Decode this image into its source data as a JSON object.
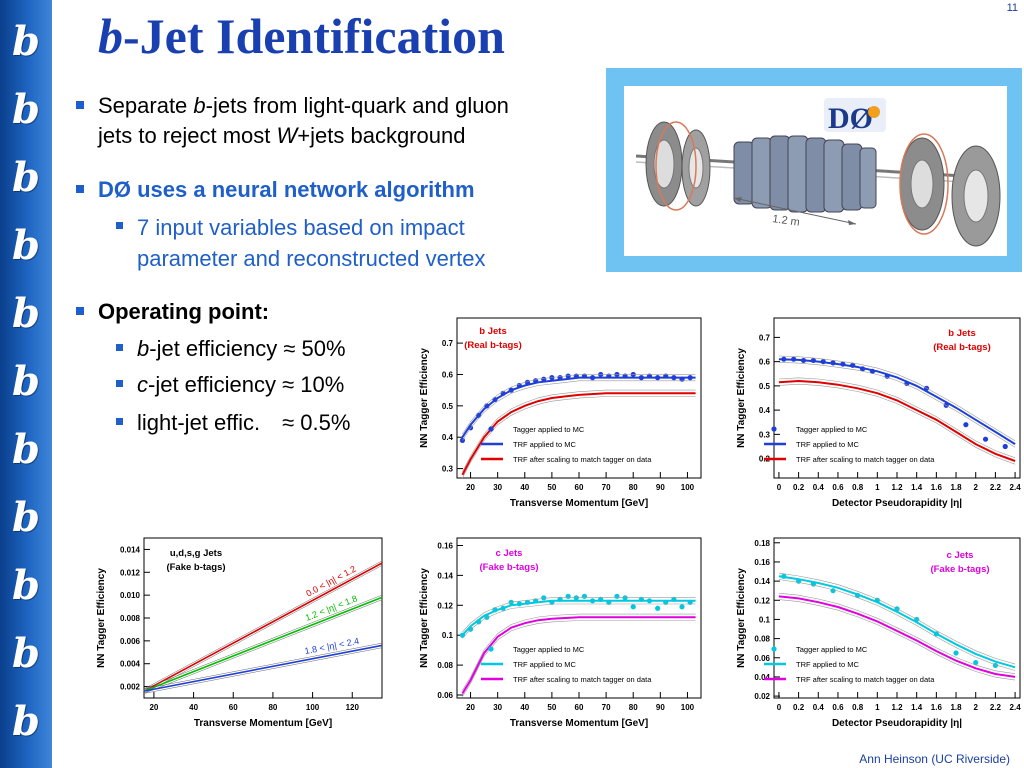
{
  "slide_number": "11",
  "title": {
    "italic": "b",
    "rest": "-Jet Identification"
  },
  "bullets": {
    "b1": {
      "pre": "Separate ",
      "italic": "b",
      "post": "-jets from light-quark and gluon",
      "line2_pre": "jets to reject most ",
      "line2_italic": "W",
      "line2_post": "+jets background"
    },
    "b2": {
      "text": "DØ uses a neural network algorithm"
    },
    "b2_sub": {
      "line1": "7 input variables based on impact",
      "line2": "parameter and reconstructed vertex"
    },
    "b3": {
      "text": "Operating point:"
    },
    "b3_sub1": {
      "italic": "b",
      "post": "-jet efficiency ≈ 50%"
    },
    "b3_sub2": {
      "italic": "c",
      "post": "-jet efficiency ≈ 10%"
    },
    "b3_sub3": {
      "pre": "light-jet effic.",
      "post": "≈ 0.5%"
    }
  },
  "detector_image": {
    "logo": "DØ",
    "scale_label": "1.2 m"
  },
  "footer": "Ann Heinson   (UC Riverside)",
  "colors": {
    "sidebar": "#1f66c2",
    "title": "#1a3fb0",
    "accent": "#1f5fc9",
    "red": "#e00000",
    "blue_marker": "#1f3fd8",
    "cyan": "#00c8e0",
    "magenta": "#e000e0",
    "frame": "#6fc3f3"
  },
  "chart_data": [
    {
      "type": "scatter",
      "title": "b Jets",
      "subtitle": "(Real b-tags)",
      "xlabel": "Transverse Momentum   [GeV]",
      "ylabel": "NN Tagger Efficiency",
      "xlim": [
        15,
        105
      ],
      "ylim": [
        0.27,
        0.78
      ],
      "xticks": [
        20,
        30,
        40,
        50,
        60,
        70,
        80,
        90,
        100
      ],
      "xticklabels": [
        "20",
        "30",
        "40",
        "50",
        "60",
        "70",
        "80",
        "90",
        "100"
      ],
      "yticks": [
        0.3,
        0.4,
        0.5,
        0.6,
        0.7
      ],
      "yticklabels": [
        "0.3",
        "0.4",
        "0.5",
        "0.6",
        "0.7"
      ],
      "legend": [
        "Tagger applied to MC",
        "TRF applied to MC",
        "TRF after scaling to match tagger on data"
      ],
      "series": [
        {
          "x": [
            17,
            20,
            23,
            26,
            29,
            32,
            35,
            38,
            41,
            44,
            47,
            50,
            53,
            56,
            59,
            62,
            65,
            68,
            71,
            74,
            77,
            80,
            83,
            86,
            89,
            92,
            95,
            98,
            101
          ],
          "values": [
            0.39,
            0.43,
            0.47,
            0.5,
            0.52,
            0.54,
            0.55,
            0.565,
            0.575,
            0.58,
            0.585,
            0.59,
            0.59,
            0.595,
            0.595,
            0.595,
            0.59,
            0.6,
            0.595,
            0.6,
            0.595,
            0.6,
            0.59,
            0.595,
            0.59,
            0.595,
            0.59,
            0.585,
            0.59
          ]
        },
        {
          "x": [
            17,
            20,
            25,
            30,
            35,
            40,
            45,
            50,
            55,
            60,
            70,
            80,
            90,
            100,
            103
          ],
          "values": [
            0.4,
            0.44,
            0.49,
            0.525,
            0.55,
            0.565,
            0.575,
            0.58,
            0.585,
            0.59,
            0.59,
            0.59,
            0.59,
            0.59,
            0.59
          ]
        },
        {
          "x": [
            17,
            20,
            25,
            30,
            35,
            40,
            45,
            50,
            55,
            60,
            70,
            80,
            90,
            100,
            103
          ],
          "values": [
            0.28,
            0.33,
            0.4,
            0.45,
            0.48,
            0.5,
            0.515,
            0.525,
            0.53,
            0.535,
            0.54,
            0.54,
            0.54,
            0.54,
            0.54
          ]
        }
      ]
    },
    {
      "type": "scatter",
      "title": "b Jets",
      "subtitle": "(Real b-tags)",
      "xlabel": "Detector Pseudorapidity  |η|",
      "ylabel": "NN Tagger Efficiency",
      "xlim": [
        -0.05,
        2.45
      ],
      "ylim": [
        0.12,
        0.78
      ],
      "xticks": [
        0,
        0.2,
        0.4,
        0.6,
        0.8,
        1,
        1.2,
        1.4,
        1.6,
        1.8,
        2,
        2.2,
        2.4
      ],
      "xticklabels": [
        "0",
        "0.2",
        "0.4",
        "0.6",
        "0.8",
        "1",
        "1.2",
        "1.4",
        "1.6",
        "1.8",
        "2",
        "2.2",
        "2.4"
      ],
      "yticks": [
        0.2,
        0.3,
        0.4,
        0.5,
        0.6,
        0.7
      ],
      "yticklabels": [
        "0.2",
        "0.3",
        "0.4",
        "0.5",
        "0.6",
        "0.7"
      ],
      "legend": [
        "Tagger applied to MC",
        "TRF applied to MC",
        "TRF after scaling to match tagger on data"
      ],
      "series": [
        {
          "x": [
            0.05,
            0.15,
            0.25,
            0.35,
            0.45,
            0.55,
            0.65,
            0.75,
            0.85,
            0.95,
            1.1,
            1.3,
            1.5,
            1.7,
            1.9,
            2.1,
            2.3
          ],
          "values": [
            0.61,
            0.61,
            0.605,
            0.605,
            0.6,
            0.595,
            0.59,
            0.585,
            0.57,
            0.56,
            0.54,
            0.51,
            0.49,
            0.42,
            0.34,
            0.28,
            0.25
          ]
        },
        {
          "x": [
            0,
            0.2,
            0.4,
            0.6,
            0.8,
            1.0,
            1.2,
            1.4,
            1.6,
            1.8,
            2.0,
            2.2,
            2.4
          ],
          "values": [
            0.61,
            0.607,
            0.6,
            0.59,
            0.578,
            0.56,
            0.535,
            0.5,
            0.455,
            0.41,
            0.36,
            0.31,
            0.26
          ]
        },
        {
          "x": [
            0,
            0.2,
            0.4,
            0.6,
            0.8,
            1.0,
            1.2,
            1.4,
            1.6,
            1.8,
            2.0,
            2.2,
            2.4
          ],
          "values": [
            0.515,
            0.52,
            0.515,
            0.505,
            0.49,
            0.47,
            0.44,
            0.4,
            0.36,
            0.31,
            0.26,
            0.22,
            0.19
          ]
        }
      ]
    },
    {
      "type": "line",
      "title": "u,d,s,g Jets",
      "subtitle": "(Fake b-tags)",
      "xlabel": "Transverse Momentum   [GeV]",
      "ylabel": "NN Tagger Efficiency",
      "xlim": [
        15,
        135
      ],
      "ylim": [
        0.001,
        0.015
      ],
      "xticks": [
        20,
        40,
        60,
        80,
        100,
        120
      ],
      "xticklabels": [
        "20",
        "40",
        "60",
        "80",
        "100",
        "120"
      ],
      "yticks": [
        0.002,
        0.004,
        0.006,
        0.008,
        0.01,
        0.012,
        0.014
      ],
      "yticklabels": [
        "0.002",
        "0.004",
        "0.006",
        "0.008",
        "0.010",
        "0.012",
        "0.014"
      ],
      "series": [
        {
          "name": "0.0 < |η| < 1.2",
          "x": [
            15,
            135
          ],
          "values": [
            0.0016,
            0.0128
          ]
        },
        {
          "name": "1.2 < |η| < 1.8",
          "x": [
            15,
            135
          ],
          "values": [
            0.0016,
            0.0098
          ]
        },
        {
          "name": "1.8 < |η| < 2.4",
          "x": [
            15,
            135
          ],
          "values": [
            0.0016,
            0.0056
          ]
        }
      ]
    },
    {
      "type": "scatter",
      "title": "c Jets",
      "subtitle": "(Fake b-tags)",
      "xlabel": "Transverse Momentum   [GeV]",
      "ylabel": "NN Tagger Efficiency",
      "xlim": [
        15,
        105
      ],
      "ylim": [
        0.058,
        0.165
      ],
      "xticks": [
        20,
        30,
        40,
        50,
        60,
        70,
        80,
        90,
        100
      ],
      "xticklabels": [
        "20",
        "30",
        "40",
        "50",
        "60",
        "70",
        "80",
        "90",
        "100"
      ],
      "yticks": [
        0.06,
        0.08,
        0.1,
        0.12,
        0.14,
        0.16
      ],
      "yticklabels": [
        "0.06",
        "0.08",
        "0.1",
        "0.12",
        "0.14",
        "0.16"
      ],
      "legend": [
        "Tagger applied to MC",
        "TRF applied to MC",
        "TRF after scaling to match tagger on data"
      ],
      "series": [
        {
          "x": [
            17,
            20,
            23,
            26,
            29,
            32,
            35,
            38,
            41,
            44,
            47,
            50,
            53,
            56,
            59,
            62,
            65,
            68,
            71,
            74,
            77,
            80,
            83,
            86,
            89,
            92,
            95,
            98,
            101
          ],
          "values": [
            0.1,
            0.104,
            0.109,
            0.112,
            0.117,
            0.118,
            0.122,
            0.121,
            0.122,
            0.123,
            0.125,
            0.122,
            0.124,
            0.126,
            0.125,
            0.126,
            0.123,
            0.124,
            0.122,
            0.126,
            0.125,
            0.119,
            0.124,
            0.123,
            0.118,
            0.122,
            0.124,
            0.119,
            0.122
          ]
        },
        {
          "x": [
            17,
            20,
            25,
            30,
            35,
            40,
            45,
            50,
            60,
            70,
            80,
            90,
            100,
            103
          ],
          "values": [
            0.1,
            0.106,
            0.113,
            0.117,
            0.12,
            0.121,
            0.122,
            0.123,
            0.123,
            0.123,
            0.123,
            0.123,
            0.123,
            0.123
          ]
        },
        {
          "x": [
            17,
            20,
            25,
            30,
            35,
            40,
            45,
            50,
            60,
            70,
            80,
            90,
            100,
            103
          ],
          "values": [
            0.061,
            0.07,
            0.088,
            0.099,
            0.105,
            0.108,
            0.11,
            0.111,
            0.112,
            0.112,
            0.112,
            0.112,
            0.112,
            0.112
          ]
        }
      ]
    },
    {
      "type": "scatter",
      "title": "c Jets",
      "subtitle": "(Fake b-tags)",
      "xlabel": "Detector Pseudorapidity  |η|",
      "ylabel": "NN Tagger Efficiency",
      "xlim": [
        -0.05,
        2.45
      ],
      "ylim": [
        0.018,
        0.185
      ],
      "xticks": [
        0,
        0.2,
        0.4,
        0.6,
        0.8,
        1,
        1.2,
        1.4,
        1.6,
        1.8,
        2,
        2.2,
        2.4
      ],
      "xticklabels": [
        "0",
        "0.2",
        "0.4",
        "0.6",
        "0.8",
        "1",
        "1.2",
        "1.4",
        "1.6",
        "1.8",
        "2",
        "2.2",
        "2.4"
      ],
      "yticks": [
        0.02,
        0.04,
        0.06,
        0.08,
        0.1,
        0.12,
        0.14,
        0.16,
        0.18
      ],
      "yticklabels": [
        "0.02",
        "0.04",
        "0.06",
        "0.08",
        "0.1",
        "0.12",
        "0.14",
        "0.16",
        "0.18"
      ],
      "legend": [
        "Tagger applied to MC",
        "TRF applied to MC",
        "TRF after scaling to match tagger on data"
      ],
      "series": [
        {
          "x": [
            0.05,
            0.2,
            0.35,
            0.55,
            0.8,
            1.0,
            1.2,
            1.4,
            1.6,
            1.8,
            2.0,
            2.2
          ],
          "values": [
            0.145,
            0.14,
            0.137,
            0.13,
            0.125,
            0.12,
            0.111,
            0.1,
            0.085,
            0.065,
            0.055,
            0.052
          ]
        },
        {
          "x": [
            0,
            0.2,
            0.4,
            0.6,
            0.8,
            1.0,
            1.2,
            1.4,
            1.6,
            1.8,
            2.0,
            2.2,
            2.4
          ],
          "values": [
            0.145,
            0.142,
            0.138,
            0.133,
            0.126,
            0.118,
            0.108,
            0.097,
            0.085,
            0.074,
            0.064,
            0.056,
            0.05
          ]
        },
        {
          "x": [
            0,
            0.2,
            0.4,
            0.6,
            0.8,
            1.0,
            1.2,
            1.4,
            1.6,
            1.8,
            2.0,
            2.2,
            2.4
          ],
          "values": [
            0.124,
            0.122,
            0.118,
            0.113,
            0.106,
            0.098,
            0.088,
            0.078,
            0.067,
            0.057,
            0.049,
            0.043,
            0.04
          ]
        }
      ]
    }
  ]
}
